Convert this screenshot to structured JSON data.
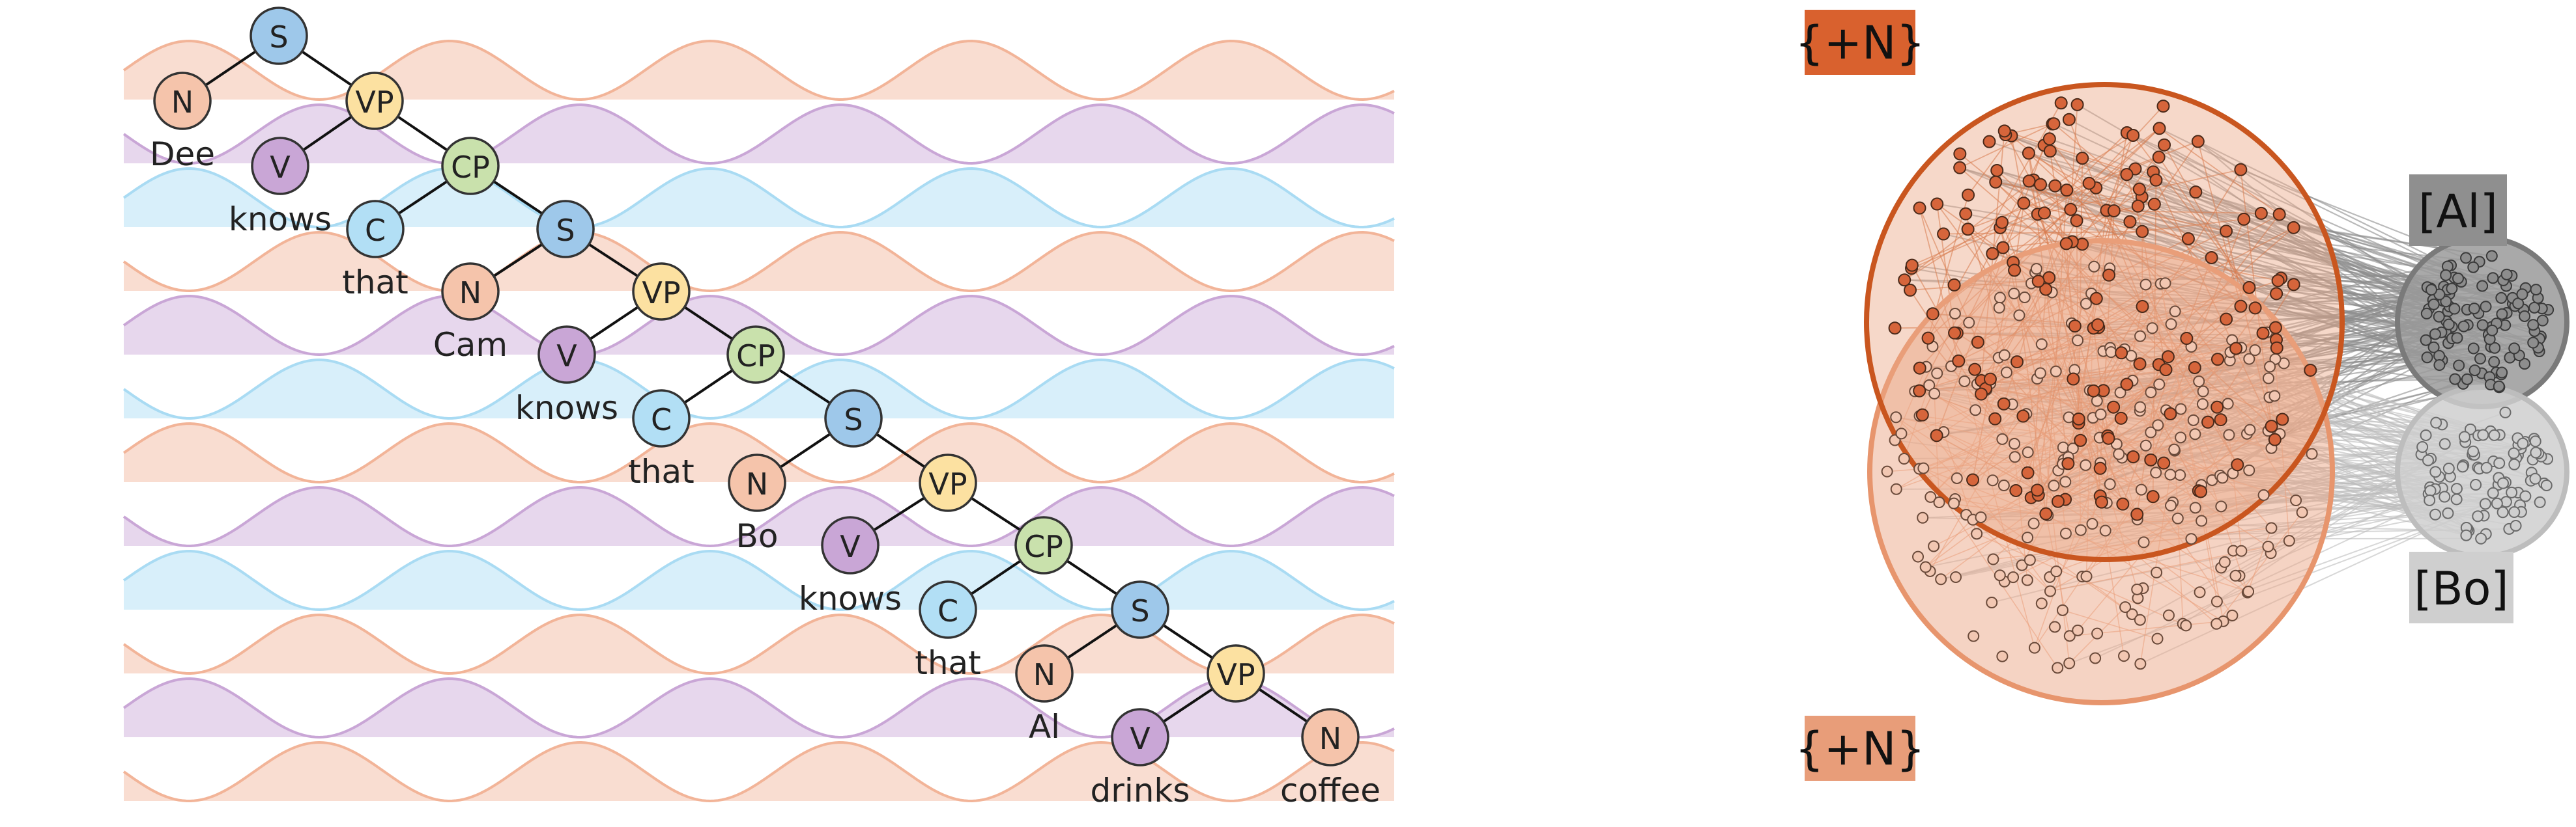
{
  "colors": {
    "n": "#f5c4ab",
    "v": "#c9a6d6",
    "c": "#b2dff5",
    "s": "#9ec8ea",
    "vp": "#fce1a1",
    "cp": "#c9e1ac",
    "wave_orange": "#f2b498",
    "wave_purple": "#c9a6d6",
    "wave_blue": "#a9dbf3",
    "bump_fill": "#d6653b",
    "bump_edge": "#c9561f",
    "bump2_fill": "#eba888",
    "bump2_edge": "#e7956d",
    "al_fill": "#9a9a9a",
    "bo_fill": "#cfcfcf",
    "header_top": "#d9612e",
    "header_bottom": "#e89d79",
    "header_al": "#8f8f8f",
    "header_bo": "#cfcfcf"
  },
  "tree": {
    "nodes": [
      {
        "id": "s1",
        "label": "S",
        "cat": "s"
      },
      {
        "id": "n1",
        "label": "N",
        "cat": "n"
      },
      {
        "id": "vp1",
        "label": "VP",
        "cat": "vp"
      },
      {
        "id": "v1",
        "label": "V",
        "cat": "v"
      },
      {
        "id": "cp1",
        "label": "CP",
        "cat": "cp"
      },
      {
        "id": "c1",
        "label": "C",
        "cat": "c"
      },
      {
        "id": "s2",
        "label": "S",
        "cat": "s"
      },
      {
        "id": "n2",
        "label": "N",
        "cat": "n"
      },
      {
        "id": "vp2",
        "label": "VP",
        "cat": "vp"
      },
      {
        "id": "v2",
        "label": "V",
        "cat": "v"
      },
      {
        "id": "cp2",
        "label": "CP",
        "cat": "cp"
      },
      {
        "id": "c2",
        "label": "C",
        "cat": "c"
      },
      {
        "id": "s3",
        "label": "S",
        "cat": "s"
      },
      {
        "id": "n3",
        "label": "N",
        "cat": "n"
      },
      {
        "id": "vp3",
        "label": "VP",
        "cat": "vp"
      },
      {
        "id": "v3",
        "label": "V",
        "cat": "v"
      },
      {
        "id": "cp3",
        "label": "CP",
        "cat": "cp"
      },
      {
        "id": "c3",
        "label": "C",
        "cat": "c"
      },
      {
        "id": "s4",
        "label": "S",
        "cat": "s"
      },
      {
        "id": "n4",
        "label": "N",
        "cat": "n"
      },
      {
        "id": "vp4",
        "label": "VP",
        "cat": "vp"
      },
      {
        "id": "v4",
        "label": "V",
        "cat": "v"
      },
      {
        "id": "n5",
        "label": "N",
        "cat": "n"
      }
    ],
    "edges": [
      [
        "s1",
        "n1"
      ],
      [
        "s1",
        "vp1"
      ],
      [
        "vp1",
        "v1"
      ],
      [
        "vp1",
        "cp1"
      ],
      [
        "cp1",
        "c1"
      ],
      [
        "cp1",
        "s2"
      ],
      [
        "s2",
        "n2"
      ],
      [
        "s2",
        "vp2"
      ],
      [
        "vp2",
        "v2"
      ],
      [
        "vp2",
        "cp2"
      ],
      [
        "cp2",
        "c2"
      ],
      [
        "cp2",
        "s3"
      ],
      [
        "s3",
        "n3"
      ],
      [
        "s3",
        "vp3"
      ],
      [
        "vp3",
        "v3"
      ],
      [
        "vp3",
        "cp3"
      ],
      [
        "cp3",
        "c3"
      ],
      [
        "cp3",
        "s4"
      ],
      [
        "s4",
        "n4"
      ],
      [
        "s4",
        "vp4"
      ],
      [
        "vp4",
        "v4"
      ],
      [
        "vp4",
        "n5"
      ]
    ],
    "words": [
      {
        "node": "n1",
        "text": "Dee"
      },
      {
        "node": "v1",
        "text": "knows"
      },
      {
        "node": "c1",
        "text": "that"
      },
      {
        "node": "n2",
        "text": "Cam"
      },
      {
        "node": "v2",
        "text": "knows"
      },
      {
        "node": "c2",
        "text": "that"
      },
      {
        "node": "n3",
        "text": "Bo"
      },
      {
        "node": "v3",
        "text": "knows"
      },
      {
        "node": "c3",
        "text": "that"
      },
      {
        "node": "n4",
        "text": "Al"
      },
      {
        "node": "v4",
        "text": "drinks"
      },
      {
        "node": "n5",
        "text": "coffee"
      }
    ]
  },
  "network": {
    "top_label": "{+N}",
    "bottom_label": "{+N}",
    "al_label": "[Al]",
    "bo_label": "[Bo]"
  }
}
